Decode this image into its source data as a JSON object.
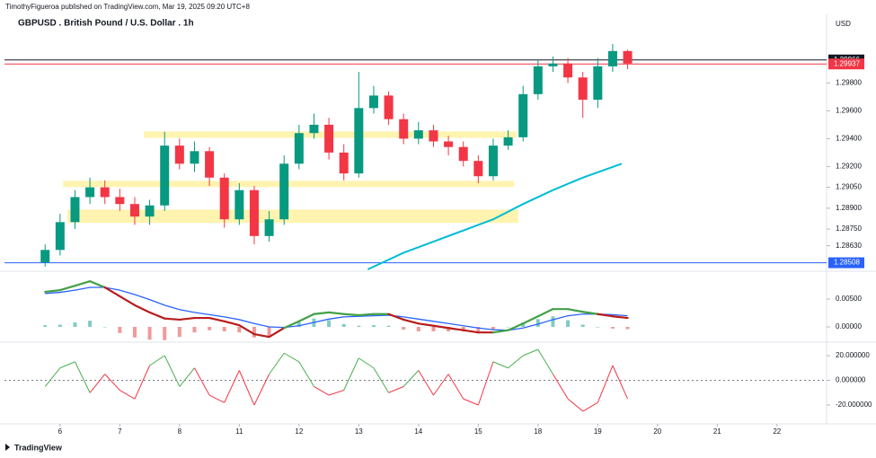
{
  "chart_data": {
    "type": "candlestick",
    "header": "TimothyFigueroa published on TradingView.com, Mar 19, 2025 09:20 UTC+8",
    "title": "GBPUSD . British Pound / U.S. Dollar . 1h",
    "currency": "USD",
    "footer": "TradingView",
    "up_color": "#089981",
    "down_color": "#f23645",
    "x": [
      -0.25,
      0,
      0.25,
      0.5,
      0.75,
      1,
      1.25,
      1.5,
      1.75,
      2,
      2.25,
      2.5,
      2.75,
      3,
      3.25,
      3.5,
      3.75,
      4,
      4.25,
      4.5,
      4.75,
      5,
      5.25,
      5.5,
      5.75,
      6,
      6.25,
      6.5,
      6.75,
      7,
      7.25,
      7.5,
      7.75,
      8,
      8.25,
      8.5,
      8.75,
      9,
      9.25,
      9.5
    ],
    "open": [
      1.2851,
      1.286,
      1.288,
      1.2898,
      1.2905,
      1.2898,
      1.2893,
      1.2884,
      1.2892,
      1.2935,
      1.2922,
      1.2931,
      1.2912,
      1.2882,
      1.2903,
      1.287,
      1.2882,
      1.2922,
      1.2944,
      1.295,
      1.293,
      1.2915,
      1.2962,
      1.2971,
      1.2954,
      1.294,
      1.2946,
      1.2938,
      1.2934,
      1.2924,
      1.2913,
      1.2935,
      1.2941,
      1.2972,
      1.2992,
      1.2994,
      1.2984,
      1.2968,
      1.2992,
      1.3003
    ],
    "high": [
      1.2864,
      1.2886,
      1.2903,
      1.2912,
      1.291,
      1.2904,
      1.2898,
      1.2896,
      1.2945,
      1.294,
      1.2938,
      1.2934,
      1.2915,
      1.2908,
      1.2906,
      1.2888,
      1.2928,
      1.295,
      1.2958,
      1.2955,
      1.2936,
      1.2988,
      1.2978,
      1.2974,
      1.2958,
      1.2952,
      1.295,
      1.2942,
      1.2938,
      1.2928,
      1.294,
      1.2946,
      1.2978,
      1.2997,
      1.2999,
      1.2998,
      1.2988,
      1.2998,
      1.3008,
      1.3004
    ],
    "low": [
      1.2848,
      1.2856,
      1.2875,
      1.2893,
      1.2893,
      1.2888,
      1.2878,
      1.2878,
      1.2888,
      1.2918,
      1.2916,
      1.2906,
      1.2876,
      1.2878,
      1.2864,
      1.2866,
      1.2878,
      1.2918,
      1.294,
      1.2925,
      1.291,
      1.2912,
      1.2958,
      1.295,
      1.2936,
      1.2936,
      1.2934,
      1.2928,
      1.292,
      1.2908,
      1.291,
      1.2932,
      1.2938,
      1.2968,
      1.2988,
      1.298,
      1.2955,
      1.2962,
      1.2988,
      1.299
    ],
    "close": [
      1.286,
      1.288,
      1.2898,
      1.2905,
      1.2898,
      1.2893,
      1.2884,
      1.2892,
      1.2935,
      1.2922,
      1.2931,
      1.2912,
      1.2882,
      1.2903,
      1.287,
      1.2882,
      1.2922,
      1.2944,
      1.295,
      1.293,
      1.2915,
      1.2962,
      1.2971,
      1.2954,
      1.294,
      1.2946,
      1.2938,
      1.2934,
      1.2924,
      1.2913,
      1.2935,
      1.2941,
      1.2972,
      1.2992,
      1.2994,
      1.2984,
      1.2968,
      1.2992,
      1.3003,
      1.2994
    ],
    "xlim": [
      -0.93,
      12.83
    ],
    "xticks": [
      {
        "value": 0,
        "label": "6"
      },
      {
        "value": 1,
        "label": "7"
      },
      {
        "value": 2,
        "label": "8"
      },
      {
        "value": 3,
        "label": "11"
      },
      {
        "value": 4,
        "label": "12"
      },
      {
        "value": 5,
        "label": "13"
      },
      {
        "value": 6,
        "label": "14"
      },
      {
        "value": 7,
        "label": "15"
      },
      {
        "value": 8,
        "label": "18"
      },
      {
        "value": 9,
        "label": "19"
      },
      {
        "value": 10,
        "label": "20"
      },
      {
        "value": 11,
        "label": "21"
      },
      {
        "value": 12,
        "label": "22"
      }
    ],
    "ylim": [
      1.2846,
      1.303
    ],
    "yticks": [
      {
        "value": 1.298,
        "label": "1.29800"
      },
      {
        "value": 1.296,
        "label": "1.29600"
      },
      {
        "value": 1.294,
        "label": "1.29400"
      },
      {
        "value": 1.292,
        "label": "1.29200"
      },
      {
        "value": 1.2905,
        "label": "1.29050"
      },
      {
        "value": 1.289,
        "label": "1.28900"
      },
      {
        "value": 1.2875,
        "label": "1.28750"
      },
      {
        "value": 1.2863,
        "label": "1.28630"
      }
    ],
    "price_lines": [
      {
        "value": 1.29966,
        "label": "1.29966",
        "color": "#131722"
      },
      {
        "value": 1.29937,
        "label": "1.29937",
        "color": "#f23645"
      },
      {
        "value": 1.28508,
        "label": "1.28508",
        "color": "#2962ff"
      }
    ],
    "zones": {
      "color": "#fff3b0",
      "items": [
        {
          "x0": 1.4,
          "x1": 7.64,
          "y0": 1.29406,
          "y1": 1.29452
        },
        {
          "x0": 0.05,
          "x1": 7.6,
          "y0": 1.29052,
          "y1": 1.29097
        },
        {
          "x0": 0.12,
          "x1": 7.67,
          "y0": 1.28794,
          "y1": 1.2889
        }
      ]
    },
    "ma": {
      "color": "#00bcd4",
      "x": [
        5.15,
        5.75,
        6.25,
        6.75,
        7.25,
        7.75,
        8.25,
        8.75,
        9.4
      ],
      "values": [
        1.2846,
        1.2858,
        1.2866,
        1.2874,
        1.2882,
        1.2893,
        1.2903,
        1.2912,
        1.2922
      ]
    },
    "macd": {
      "ylim": [
        -0.00226,
        0.00952
      ],
      "yticks": [
        {
          "value": 0.005,
          "label": "0.00500"
        },
        {
          "value": 0,
          "label": "0.00000"
        }
      ],
      "up_color": "#43a047",
      "down_color": "#b71c1c",
      "signal_color": "#2962ff",
      "values": [
        0.0063,
        0.0066,
        0.0074,
        0.0082,
        0.0071,
        0.0055,
        0.0039,
        0.0026,
        0.0015,
        0.0013,
        0.0016,
        0.0016,
        0.001,
        0.0003,
        -0.0013,
        -0.0018,
        -0.0002,
        0.001,
        0.0023,
        0.0026,
        0.0023,
        0.0021,
        0.0023,
        0.0023,
        0.0013,
        0.0006,
        0.0002,
        -0.0002,
        -0.0006,
        -0.001,
        -0.001,
        -0.0006,
        0.0006,
        0.0019,
        0.0032,
        0.0032,
        0.0027,
        0.0023,
        0.0019,
        0.0016
      ],
      "signal": [
        0.006,
        0.0062,
        0.0066,
        0.0071,
        0.0071,
        0.0066,
        0.0058,
        0.0049,
        0.0039,
        0.0031,
        0.0026,
        0.0022,
        0.0018,
        0.0013,
        0.0006,
        0.0,
        -0.0001,
        0.0002,
        0.0008,
        0.0014,
        0.0018,
        0.0019,
        0.002,
        0.0021,
        0.0018,
        0.0014,
        0.001,
        0.0006,
        0.0002,
        -0.0002,
        -0.0005,
        -0.0006,
        -0.0002,
        0.0005,
        0.0013,
        0.002,
        0.0023,
        0.0023,
        0.0022,
        0.002
      ],
      "histogram": [
        0.0003,
        0.0004,
        0.0008,
        0.0011,
        0.0,
        -0.0011,
        -0.0019,
        -0.0023,
        -0.0024,
        -0.0018,
        -0.001,
        -0.0006,
        -0.0008,
        -0.001,
        -0.0019,
        -0.0018,
        -0.0001,
        0.0008,
        0.0015,
        0.0012,
        0.0005,
        0.0002,
        0.0003,
        0.0002,
        -0.0005,
        -0.0008,
        -0.0008,
        -0.0008,
        -0.0008,
        -0.0008,
        -0.0005,
        0.0,
        0.0008,
        0.0014,
        0.0019,
        0.0012,
        0.0004,
        0.0,
        -0.0003,
        -0.0004
      ]
    },
    "oscillator": {
      "ylim": [
        -33.8,
        28
      ],
      "yticks": [
        {
          "value": 20,
          "label": "20.000000"
        },
        {
          "value": 0,
          "label": "0.000000"
        },
        {
          "value": -20,
          "label": "-20.000000"
        }
      ],
      "up_color": "#4caf50",
      "down_color": "#f23645",
      "values": [
        -5,
        10,
        15,
        -10,
        5,
        -8,
        -15,
        12,
        20,
        -5,
        10,
        -12,
        -18,
        8,
        -20,
        5,
        22,
        15,
        -5,
        -12,
        -8,
        18,
        10,
        -10,
        -5,
        8,
        -12,
        5,
        -15,
        -20,
        15,
        10,
        20,
        25,
        5,
        -15,
        -25,
        -18,
        12,
        -15
      ]
    }
  }
}
